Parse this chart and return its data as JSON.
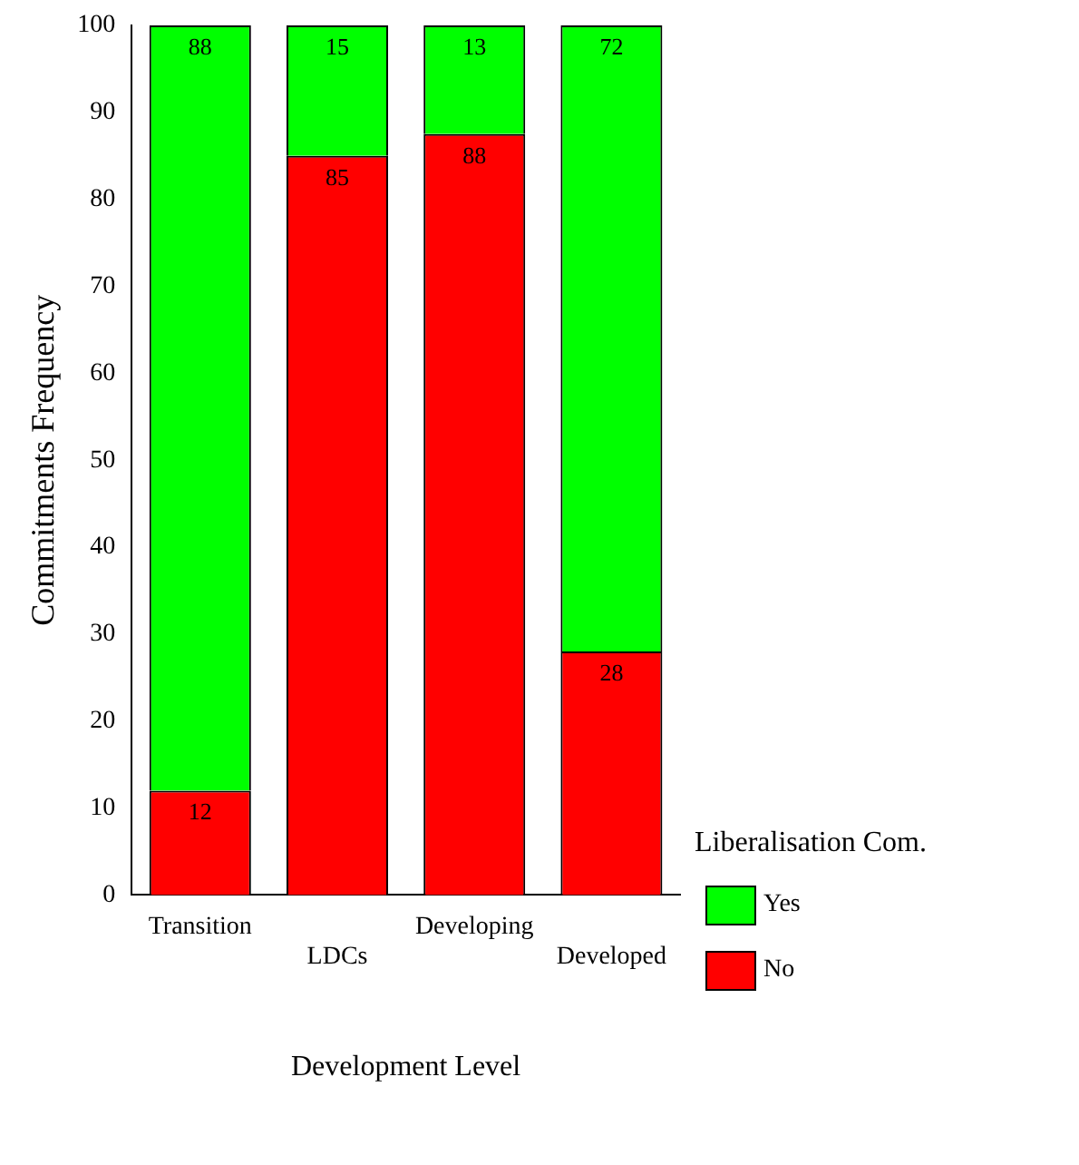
{
  "chart_data": {
    "type": "bar",
    "stacked": true,
    "categories": [
      "Transition",
      "LDCs",
      "Developing",
      "Developed"
    ],
    "series": [
      {
        "name": "No",
        "color": "#ff0000",
        "values": [
          12,
          85,
          87.5,
          28
        ],
        "value_labels": [
          "12",
          "85",
          "88",
          "28"
        ]
      },
      {
        "name": "Yes",
        "color": "#00ff00",
        "values": [
          88,
          15,
          12.5,
          72
        ],
        "value_labels": [
          "88",
          "15",
          "13",
          "72"
        ]
      }
    ],
    "ylim": [
      0,
      100
    ],
    "yticks": [
      0,
      10,
      20,
      30,
      40,
      50,
      60,
      70,
      80,
      90,
      100
    ],
    "xlabel": "Development Level",
    "ylabel": "Commitments Frequency",
    "legend_title": "Liberalisation Com.",
    "legend": "right",
    "grid": false
  }
}
